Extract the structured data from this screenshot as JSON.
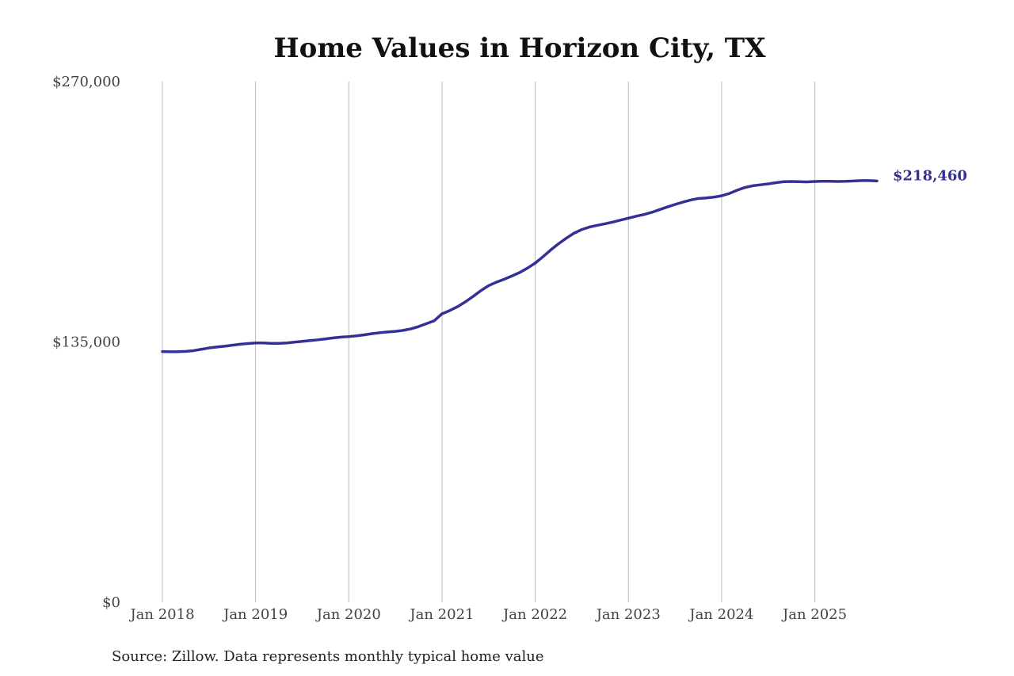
{
  "chart_data": {
    "type": "line",
    "title": "Home Values in Horizon City, TX",
    "source": "Source: Zillow. Data represents monthly typical home value",
    "color": "#353095",
    "grid": true,
    "x": [
      "2018-01",
      "2018-02",
      "2018-03",
      "2018-04",
      "2018-05",
      "2018-06",
      "2018-07",
      "2018-08",
      "2018-09",
      "2018-10",
      "2018-11",
      "2018-12",
      "2019-01",
      "2019-02",
      "2019-03",
      "2019-04",
      "2019-05",
      "2019-06",
      "2019-07",
      "2019-08",
      "2019-09",
      "2019-10",
      "2019-11",
      "2019-12",
      "2020-01",
      "2020-02",
      "2020-03",
      "2020-04",
      "2020-05",
      "2020-06",
      "2020-07",
      "2020-08",
      "2020-09",
      "2020-10",
      "2020-11",
      "2020-12",
      "2021-01",
      "2021-02",
      "2021-03",
      "2021-04",
      "2021-05",
      "2021-06",
      "2021-07",
      "2021-08",
      "2021-09",
      "2021-10",
      "2021-11",
      "2021-12",
      "2022-01",
      "2022-02",
      "2022-03",
      "2022-04",
      "2022-05",
      "2022-06",
      "2022-07",
      "2022-08",
      "2022-09",
      "2022-10",
      "2022-11",
      "2022-12",
      "2023-01",
      "2023-02",
      "2023-03",
      "2023-04",
      "2023-05",
      "2023-06",
      "2023-07",
      "2023-08",
      "2023-09",
      "2023-10",
      "2023-11",
      "2023-12",
      "2024-01",
      "2024-02",
      "2024-03",
      "2024-04",
      "2024-05",
      "2024-06",
      "2024-07",
      "2024-08",
      "2024-09",
      "2024-10",
      "2024-11",
      "2024-12",
      "2025-01",
      "2025-02",
      "2025-03",
      "2025-04",
      "2025-05",
      "2025-06",
      "2025-07",
      "2025-08",
      "2025-09"
    ],
    "values": [
      130000,
      129900,
      129950,
      130100,
      130500,
      131200,
      131900,
      132400,
      132800,
      133300,
      133800,
      134200,
      134500,
      134500,
      134300,
      134300,
      134500,
      134900,
      135300,
      135700,
      136100,
      136600,
      137100,
      137500,
      137800,
      138200,
      138700,
      139300,
      139800,
      140200,
      140500,
      141000,
      141800,
      143000,
      144500,
      146000,
      149600,
      151300,
      153300,
      155800,
      158600,
      161600,
      164200,
      166000,
      167500,
      169200,
      171000,
      173300,
      175900,
      179200,
      182700,
      185900,
      188800,
      191400,
      193300,
      194600,
      195500,
      196300,
      197200,
      198200,
      199200,
      200200,
      201100,
      202200,
      203600,
      205000,
      206300,
      207500,
      208600,
      209400,
      209700,
      210100,
      210800,
      212000,
      213700,
      215100,
      216000,
      216500,
      217000,
      217600,
      218100,
      218200,
      218100,
      218000,
      218200,
      218300,
      218300,
      218200,
      218300,
      218500,
      218700,
      218700,
      218460
    ],
    "value_labels": [
      null,
      null,
      null,
      null,
      null,
      null,
      null,
      null,
      null,
      null,
      null,
      null,
      null,
      null,
      null,
      null,
      null,
      null,
      null,
      null,
      null,
      null,
      null,
      null,
      null,
      null,
      null,
      null,
      null,
      null,
      null,
      null,
      null,
      null,
      null,
      null,
      null,
      null,
      null,
      null,
      null,
      null,
      null,
      null,
      null,
      null,
      null,
      null,
      null,
      null,
      null,
      null,
      null,
      null,
      null,
      null,
      null,
      null,
      null,
      null,
      null,
      null,
      null,
      null,
      null,
      null,
      null,
      null,
      null,
      null,
      null,
      null,
      null,
      null,
      null,
      null,
      null,
      null,
      null,
      null,
      null,
      null,
      null,
      null,
      null,
      null,
      null,
      null,
      null,
      null,
      null,
      null,
      "$218,460"
    ],
    "xlim": [
      "2018-01",
      "2025-09"
    ],
    "xticks": [
      {
        "value": "2018-01",
        "label": "Jan 2018"
      },
      {
        "value": "2019-01",
        "label": "Jan 2019"
      },
      {
        "value": "2020-01",
        "label": "Jan 2020"
      },
      {
        "value": "2021-01",
        "label": "Jan 2021"
      },
      {
        "value": "2022-01",
        "label": "Jan 2022"
      },
      {
        "value": "2023-01",
        "label": "Jan 2023"
      },
      {
        "value": "2024-01",
        "label": "Jan 2024"
      },
      {
        "value": "2025-01",
        "label": "Jan 2025"
      }
    ],
    "ylim": [
      0,
      270000
    ],
    "yticks": [
      {
        "value": 0,
        "label": "$0"
      },
      {
        "value": 135000,
        "label": "$135,000"
      },
      {
        "value": 270000,
        "label": "$270,000"
      }
    ]
  }
}
